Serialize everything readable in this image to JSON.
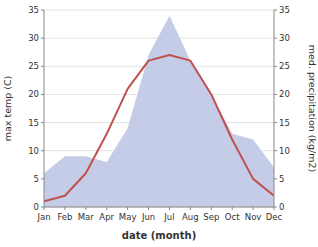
{
  "chart_data": {
    "type": "line",
    "categories": [
      "Jan",
      "Feb",
      "Mar",
      "Apr",
      "May",
      "Jun",
      "Jul",
      "Aug",
      "Sep",
      "Oct",
      "Nov",
      "Dec"
    ],
    "series": [
      {
        "type": "area",
        "color": "#c5cce8",
        "axis": "y2",
        "values": [
          6,
          9,
          9,
          8,
          14,
          27,
          34,
          26,
          20,
          13,
          12,
          7
        ]
      },
      {
        "type": "line",
        "color": "#c0504d",
        "values": [
          1,
          2,
          6,
          13,
          21,
          26,
          27,
          26,
          20,
          12,
          5,
          2
        ]
      }
    ],
    "xlabel": "date (month)",
    "ylabel": "max temp (C)",
    "y2label": "med. precipitation (kg/m2)",
    "ylim": [
      0,
      35
    ],
    "yticks": [
      0,
      5,
      10,
      15,
      20,
      25,
      30,
      35
    ],
    "y2lim": [
      0,
      35
    ],
    "y2ticks": [
      0,
      5,
      10,
      15,
      20,
      25,
      30,
      35
    ],
    "grid": true
  }
}
